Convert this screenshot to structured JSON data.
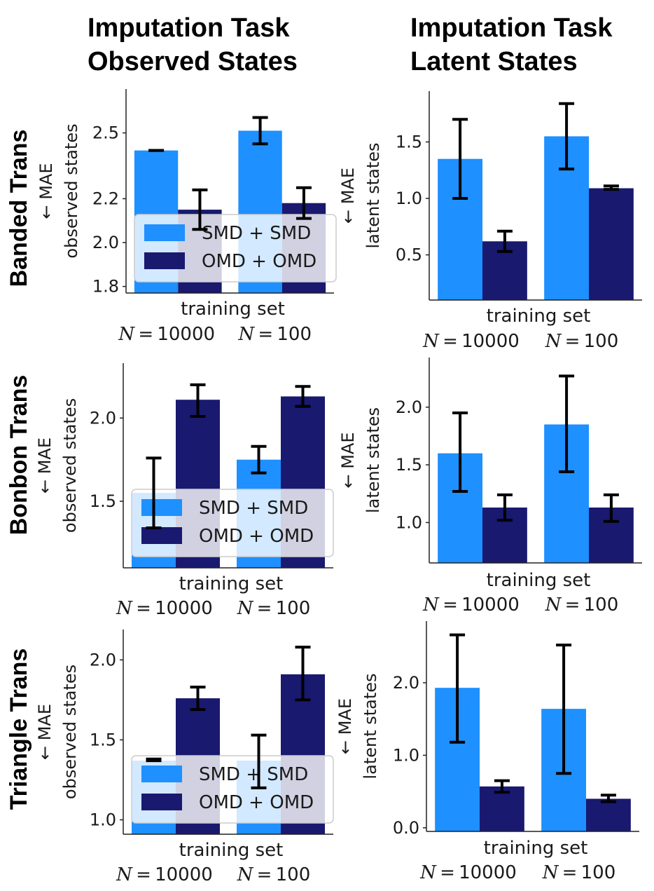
{
  "column_titles": [
    [
      "Imputation Task",
      "Observed States"
    ],
    [
      "Imputation Task",
      "Latent States"
    ]
  ],
  "row_titles": [
    "Banded Trans",
    "Bonbon Trans",
    "Triangle Trans"
  ],
  "colors": {
    "smd": "#1e90ff",
    "omd": "#191970",
    "errorbar": "#000000"
  },
  "chart_data": [
    {
      "type": "bar",
      "row": 0,
      "col": 0,
      "ylabel_lines": [
        "← MAE",
        "observed states"
      ],
      "xlabel": "training set",
      "categories": [
        "N = 10000",
        "N = 100"
      ],
      "ylim": [
        1.77,
        2.7
      ],
      "yticks": [
        1.8,
        2.0,
        2.2,
        2.5
      ],
      "ytick_labels": [
        "1.8",
        "2.0",
        "2.2",
        "2.5"
      ],
      "legend": true,
      "series": [
        {
          "name": "SMD + SMD",
          "values": [
            2.42,
            2.51
          ],
          "err_low": [
            2.42,
            2.45
          ],
          "err_high": [
            2.42,
            2.57
          ]
        },
        {
          "name": "OMD + OMD",
          "values": [
            2.15,
            2.18
          ],
          "err_low": [
            2.06,
            2.11
          ],
          "err_high": [
            2.24,
            2.25
          ]
        }
      ]
    },
    {
      "type": "bar",
      "row": 0,
      "col": 1,
      "ylabel_lines": [
        "← MAE",
        "latent states"
      ],
      "xlabel": "training set",
      "categories": [
        "N = 10000",
        "N = 100"
      ],
      "ylim": [
        0.1,
        1.95
      ],
      "yticks": [
        0.5,
        1.0,
        1.5
      ],
      "ytick_labels": [
        "0.5",
        "1.0",
        "1.5"
      ],
      "legend": false,
      "series": [
        {
          "name": "SMD + SMD",
          "values": [
            1.35,
            1.55
          ],
          "err_low": [
            1.0,
            1.26
          ],
          "err_high": [
            1.7,
            1.84
          ]
        },
        {
          "name": "OMD + OMD",
          "values": [
            0.62,
            1.09
          ],
          "err_low": [
            0.53,
            1.08
          ],
          "err_high": [
            0.71,
            1.11
          ]
        }
      ]
    },
    {
      "type": "bar",
      "row": 1,
      "col": 0,
      "ylabel_lines": [
        "← MAE",
        "observed states"
      ],
      "xlabel": "training set",
      "categories": [
        "N = 10000",
        "N = 100"
      ],
      "ylim": [
        1.1,
        2.33
      ],
      "yticks": [
        1.5,
        2.0
      ],
      "ytick_labels": [
        "1.5",
        "2.0"
      ],
      "legend": true,
      "series": [
        {
          "name": "SMD + SMD",
          "values": [
            1.55,
            1.75
          ],
          "err_low": [
            1.34,
            1.67
          ],
          "err_high": [
            1.76,
            1.83
          ]
        },
        {
          "name": "OMD + OMD",
          "values": [
            2.11,
            2.13
          ],
          "err_low": [
            2.01,
            2.07
          ],
          "err_high": [
            2.2,
            2.19
          ]
        }
      ]
    },
    {
      "type": "bar",
      "row": 1,
      "col": 1,
      "ylabel_lines": [
        "← MAE",
        "latent states"
      ],
      "xlabel": "training set",
      "categories": [
        "N = 10000",
        "N = 100"
      ],
      "ylim": [
        0.65,
        2.43
      ],
      "yticks": [
        1.0,
        1.5,
        2.0
      ],
      "ytick_labels": [
        "1.0",
        "1.5",
        "2.0"
      ],
      "legend": false,
      "series": [
        {
          "name": "SMD + SMD",
          "values": [
            1.6,
            1.85
          ],
          "err_low": [
            1.27,
            1.44
          ],
          "err_high": [
            1.95,
            2.27
          ]
        },
        {
          "name": "OMD + OMD",
          "values": [
            1.13,
            1.13
          ],
          "err_low": [
            1.02,
            1.01
          ],
          "err_high": [
            1.24,
            1.24
          ]
        }
      ]
    },
    {
      "type": "bar",
      "row": 2,
      "col": 0,
      "ylabel_lines": [
        "← MAE",
        "observed states"
      ],
      "xlabel": "training set",
      "categories": [
        "N = 10000",
        "N = 100"
      ],
      "ylim": [
        0.91,
        2.19
      ],
      "yticks": [
        1.0,
        1.5,
        2.0
      ],
      "ytick_labels": [
        "1.0",
        "1.5",
        "2.0"
      ],
      "legend": true,
      "series": [
        {
          "name": "SMD + SMD",
          "values": [
            1.37,
            1.37
          ],
          "err_low": [
            1.37,
            1.2
          ],
          "err_high": [
            1.38,
            1.53
          ]
        },
        {
          "name": "OMD + OMD",
          "values": [
            1.76,
            1.91
          ],
          "err_low": [
            1.69,
            1.75
          ],
          "err_high": [
            1.83,
            2.08
          ]
        }
      ]
    },
    {
      "type": "bar",
      "row": 2,
      "col": 1,
      "ylabel_lines": [
        "← MAE",
        "latent states"
      ],
      "xlabel": "training set",
      "categories": [
        "N = 10000",
        "N = 100"
      ],
      "ylim": [
        -0.05,
        2.85
      ],
      "yticks": [
        0.0,
        1.0,
        2.0
      ],
      "ytick_labels": [
        "0.0",
        "1.0",
        "2.0"
      ],
      "legend": false,
      "series": [
        {
          "name": "SMD + SMD",
          "values": [
            1.93,
            1.64
          ],
          "err_low": [
            1.18,
            0.75
          ],
          "err_high": [
            2.66,
            2.52
          ]
        },
        {
          "name": "OMD + OMD",
          "values": [
            0.57,
            0.4
          ],
          "err_low": [
            0.49,
            0.36
          ],
          "err_high": [
            0.65,
            0.45
          ]
        }
      ]
    }
  ]
}
